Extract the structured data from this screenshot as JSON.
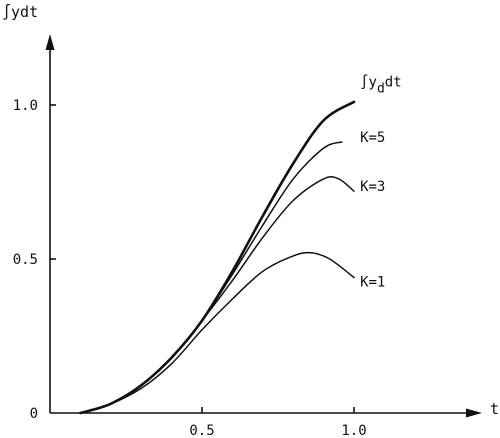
{
  "chart_data": {
    "type": "line",
    "ylabel": "∫ydt",
    "xlabel": "t",
    "xlim": [
      0,
      1.45
    ],
    "ylim": [
      0,
      1.2
    ],
    "x_ticks": [
      {
        "value": 0.5,
        "label": "0.5"
      },
      {
        "value": 1.0,
        "label": "1.0"
      }
    ],
    "y_ticks": [
      {
        "value": 0,
        "label": "0"
      },
      {
        "value": 0.5,
        "label": "0.5"
      },
      {
        "value": 1.0,
        "label": "1.0"
      }
    ],
    "series": [
      {
        "name": "∫y_d dt",
        "label_main": "∫y",
        "label_sub": "d",
        "label_tail": "dt",
        "emphasis": true,
        "label_at": [
          1.02,
          1.06
        ],
        "x": [
          0.1,
          0.2,
          0.3,
          0.4,
          0.5,
          0.6,
          0.7,
          0.8,
          0.9,
          1.0
        ],
        "y": [
          0.0,
          0.03,
          0.09,
          0.18,
          0.3,
          0.46,
          0.64,
          0.81,
          0.95,
          1.01
        ]
      },
      {
        "name": "K=5",
        "label_at": [
          1.02,
          0.88
        ],
        "x": [
          0.1,
          0.2,
          0.3,
          0.4,
          0.5,
          0.6,
          0.7,
          0.8,
          0.9,
          0.96
        ],
        "y": [
          0.0,
          0.03,
          0.09,
          0.18,
          0.3,
          0.45,
          0.61,
          0.76,
          0.86,
          0.88
        ]
      },
      {
        "name": "K=3",
        "label_at": [
          1.02,
          0.72
        ],
        "x": [
          0.1,
          0.2,
          0.3,
          0.4,
          0.5,
          0.6,
          0.7,
          0.8,
          0.9,
          0.95,
          1.0
        ],
        "y": [
          0.0,
          0.03,
          0.09,
          0.18,
          0.3,
          0.43,
          0.57,
          0.69,
          0.76,
          0.76,
          0.72
        ]
      },
      {
        "name": "K=1",
        "label_at": [
          1.02,
          0.41
        ],
        "x": [
          0.1,
          0.2,
          0.3,
          0.4,
          0.5,
          0.6,
          0.7,
          0.8,
          0.86,
          0.92,
          1.0
        ],
        "y": [
          0.0,
          0.03,
          0.08,
          0.16,
          0.27,
          0.37,
          0.46,
          0.51,
          0.52,
          0.5,
          0.44
        ]
      }
    ]
  }
}
